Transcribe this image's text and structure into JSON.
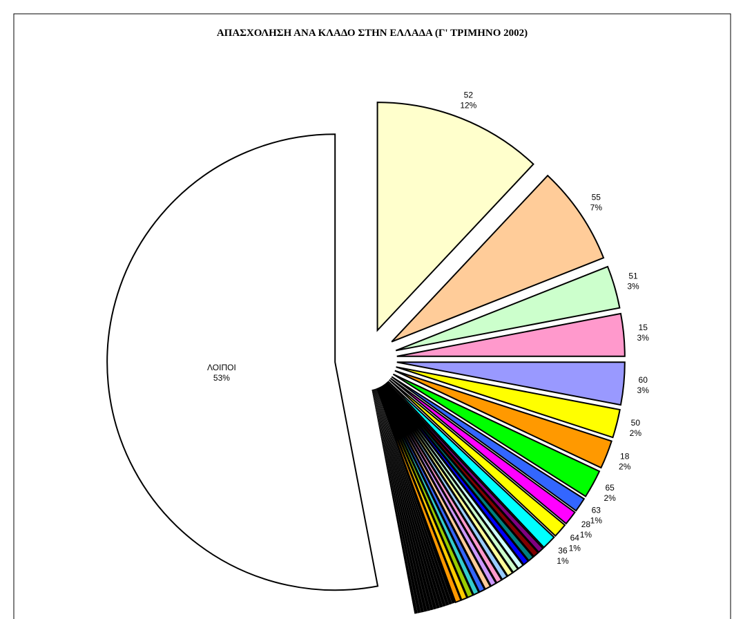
{
  "chart_data": {
    "type": "pie",
    "title": "ΑΠΑΣΧΟΛΗΣΗ ΑΝΑ ΚΛΑΔΟ ΣΤΗΝ ΕΛΛΑΔΑ  (Γ' ΤΡΙΜΗΝΟ 2002)",
    "categories": [
      "52",
      "55",
      "51",
      "15",
      "60",
      "50",
      "18",
      "65",
      "63",
      "28",
      "64",
      "36",
      null,
      null,
      null,
      null,
      null,
      null,
      null,
      null,
      null,
      null,
      null,
      null,
      null,
      null,
      null,
      null,
      null,
      null,
      null,
      null,
      null,
      null,
      null,
      null,
      null,
      null,
      null,
      null,
      null,
      "ΛΟΙΠΟΙ"
    ],
    "values": [
      12,
      7,
      3,
      3,
      3,
      2,
      2,
      2,
      1,
      1,
      1,
      1,
      0.4,
      0.4,
      0.4,
      0.4,
      0.4,
      0.4,
      0.4,
      0.4,
      0.4,
      0.4,
      0.4,
      0.4,
      0.4,
      0.4,
      0.4,
      0.4,
      0.2,
      0.2,
      0.2,
      0.2,
      0.2,
      0.2,
      0.2,
      0.2,
      0.2,
      0.2,
      0.2,
      0.2,
      0.2,
      53
    ],
    "value_labels": [
      "12%",
      "7%",
      "3%",
      "3%",
      "3%",
      "2%",
      "2%",
      "2%",
      "1%",
      "1%",
      "1%",
      "1%",
      null,
      null,
      null,
      null,
      null,
      null,
      null,
      null,
      null,
      null,
      null,
      null,
      null,
      null,
      null,
      null,
      null,
      null,
      null,
      null,
      null,
      null,
      null,
      null,
      null,
      null,
      null,
      null,
      null,
      "53%"
    ],
    "colors": [
      "#ffffcc",
      "#ffcc99",
      "#ccffcc",
      "#ff99cc",
      "#9999ff",
      "#ffff00",
      "#ff9900",
      "#00ff00",
      "#3366ff",
      "#ff00ff",
      "#ffff00",
      "#00ffff",
      "#800080",
      "#800000",
      "#008080",
      "#0000ff",
      "#ccffff",
      "#ccffcc",
      "#ffff99",
      "#99ccff",
      "#ff99cc",
      "#cc99ff",
      "#ffcc99",
      "#3366ff",
      "#33cccc",
      "#99cc00",
      "#ffcc00",
      "#ff9900",
      "#000000",
      "#000000",
      "#000000",
      "#000000",
      "#000000",
      "#000000",
      "#000000",
      "#000000",
      "#000000",
      "#000000",
      "#000000",
      "#000000",
      "#000000",
      "#ffffff"
    ]
  }
}
